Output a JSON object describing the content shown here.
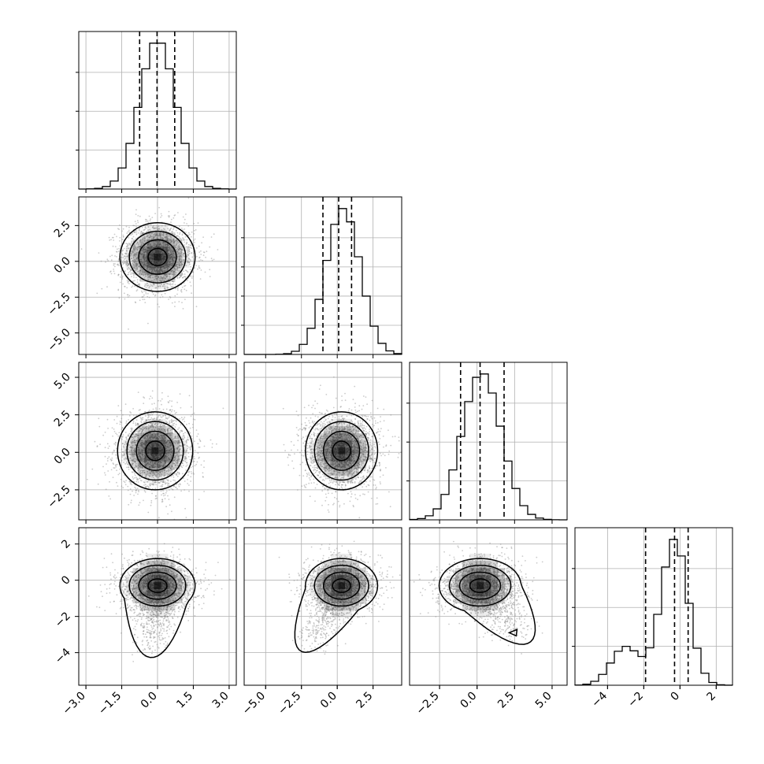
{
  "chart_data": {
    "type": "corner",
    "dimensions": 4,
    "grid": true,
    "title": "",
    "variables": [
      {
        "index": 0,
        "label": "",
        "range": [
          -3.3,
          3.3
        ],
        "ticks": [
          -3.0,
          -1.5,
          0.0,
          1.5,
          3.0
        ],
        "tick_labels": [
          "−3.0",
          "−1.5",
          "0.0",
          "1.5",
          "3.0"
        ],
        "mean": 0.0,
        "sigma": 0.75,
        "quantiles": [
          -0.75,
          -0.02,
          0.72
        ]
      },
      {
        "index": 1,
        "label": "",
        "range": [
          -6.5,
          4.5
        ],
        "ticks": [
          -5.0,
          -2.5,
          0.0,
          2.5
        ],
        "tick_labels": [
          "−5.0",
          "−2.5",
          "0.0",
          "2.5"
        ],
        "mean": 0.4,
        "sigma": 1.2,
        "quantiles": [
          -1.0,
          0.1,
          1.0
        ]
      },
      {
        "index": 2,
        "label": "",
        "range": [
          -4.5,
          6.0
        ],
        "ticks": [
          -2.5,
          0.0,
          2.5,
          5.0
        ],
        "tick_labels": [
          "−2.5",
          "0.0",
          "2.5",
          "5.0"
        ],
        "mean": 0.3,
        "sigma": 1.3,
        "quantiles": [
          -1.1,
          0.2,
          1.8
        ]
      },
      {
        "index": 3,
        "label": "",
        "range": [
          -5.8,
          2.9
        ],
        "ticks": [
          -4,
          -2,
          0,
          2
        ],
        "tick_labels": [
          "−4",
          "−2",
          "0",
          "2"
        ],
        "mean": -0.3,
        "sigma": 0.75,
        "tail_weight": 0.22,
        "tail_mean": -3.0,
        "tail_sigma": 0.8,
        "quantiles": [
          -1.9,
          -0.3,
          0.45
        ]
      }
    ],
    "diagonal_y_ticks": [
      [
        0.06,
        0.12,
        0.18
      ],
      [
        0.03,
        0.06,
        0.09,
        0.12
      ],
      [
        0.025,
        0.05,
        0.075
      ],
      [
        0.05,
        0.1,
        0.15
      ]
    ],
    "pair_panels": [
      {
        "row": 1,
        "col": 0,
        "center": [
          0.0,
          0.3
        ]
      },
      {
        "row": 2,
        "col": 0,
        "center": [
          -0.1,
          0.1
        ]
      },
      {
        "row": 2,
        "col": 1,
        "center": [
          0.3,
          0.1
        ]
      },
      {
        "row": 3,
        "col": 0,
        "center": [
          0.0,
          -0.3
        ],
        "tail_to": [
          -0.2,
          -3.6
        ]
      },
      {
        "row": 3,
        "col": 1,
        "center": [
          0.3,
          -0.3
        ],
        "tail_to": [
          -1.8,
          -3.4
        ]
      },
      {
        "row": 3,
        "col": 2,
        "center": [
          0.2,
          -0.3
        ],
        "tail_to": [
          2.4,
          -2.9
        ]
      }
    ],
    "contour_levels": [
      "0.5σ",
      "1σ",
      "1.5σ",
      "2σ"
    ],
    "colors": {
      "points": "#8c8c8c",
      "density": "#000000",
      "lines": "#000000",
      "grid": "#b0b0b0"
    }
  }
}
